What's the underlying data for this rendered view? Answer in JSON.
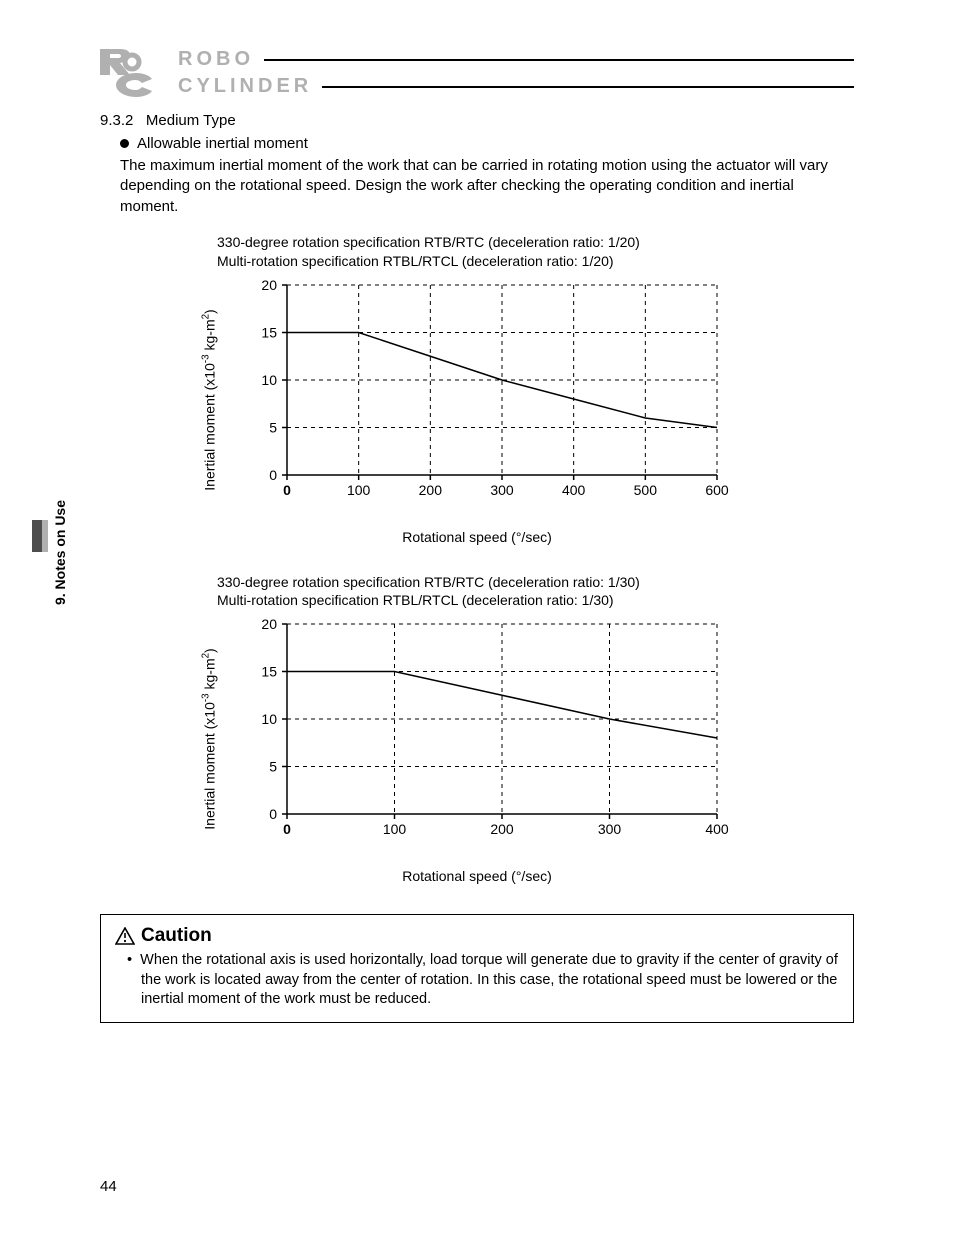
{
  "logo": {
    "line1": "ROBO",
    "line2": "CYLINDER"
  },
  "section_number": "9.3.2",
  "section_title": "Medium Type",
  "bullet_heading": "Allowable inertial moment",
  "intro_paragraph": "The maximum inertial moment of the work that can be carried in rotating motion using the actuator will vary depending on the rotational speed. Design the work after checking the operating condition and inertial moment.",
  "side_tab_label": "9. Notes on Use",
  "page_number": "44",
  "caution": {
    "title": "Caution",
    "text": "When the rotational axis is used horizontally, load torque will generate due to gravity if the center of gravity of the work is located away from the center of rotation. In this case, the rotational speed must be lowered or the inertial moment of the work must be reduced."
  },
  "chart_common": {
    "y_label_prefix": "Inertial moment (x10",
    "y_label_exp": "-3",
    "y_label_suffix_1": " kg-m",
    "y_label_exp2": "2",
    "y_label_suffix_2": ")",
    "x_label": "Rotational speed (°/sec)",
    "grid_color": "#000000",
    "axis_color": "#000000",
    "line_color": "#000000",
    "background_color": "#ffffff",
    "font_size_axis": 14
  },
  "chart1": {
    "caption_line1": "330-degree rotation specification RTB/RTC (deceleration ratio: 1/20)",
    "caption_line2": "Multi-rotation specification RTBL/RTCL (deceleration ratio: 1/20)",
    "type": "line",
    "xlim": [
      0,
      600
    ],
    "ylim": [
      0,
      20
    ],
    "xticks": [
      0,
      100,
      200,
      300,
      400,
      500,
      600
    ],
    "yticks": [
      0,
      5,
      10,
      15,
      20
    ],
    "data_x": [
      0,
      100,
      200,
      300,
      400,
      500,
      600
    ],
    "data_y": [
      15,
      15,
      12.5,
      10,
      8,
      6,
      5
    ],
    "grid_dash": "4,4"
  },
  "chart2": {
    "caption_line1": "330-degree rotation specification RTB/RTC (deceleration ratio: 1/30)",
    "caption_line2": "Multi-rotation specification RTBL/RTCL (deceleration ratio: 1/30)",
    "type": "line",
    "xlim": [
      0,
      400
    ],
    "ylim": [
      0,
      20
    ],
    "xticks": [
      0,
      100,
      200,
      300,
      400
    ],
    "yticks": [
      0,
      5,
      10,
      15,
      20
    ],
    "data_x": [
      0,
      100,
      200,
      300,
      400
    ],
    "data_y": [
      15,
      15,
      12.5,
      10,
      8
    ],
    "grid_dash": "4,4"
  }
}
